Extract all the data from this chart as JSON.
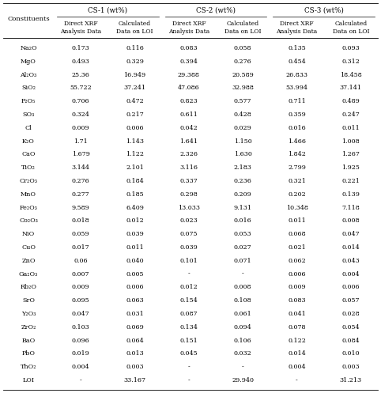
{
  "col_groups": [
    "CS-1 (wt%)",
    "CS-2 (wt%)",
    "CS-3 (wt%)"
  ],
  "sub_headers": [
    "Direct XRF\nAnalysis Data",
    "Calculated\nData on LOI",
    "Direct XRF\nAnalysis Data",
    "Calculated\nData on LOI",
    "Direct XRF\nAnalysis Data",
    "Calculated\nData on LOI"
  ],
  "constituents_col": "Constituents",
  "rows": [
    [
      "Na₂O",
      "0.173",
      "0.116",
      "0.083",
      "0.058",
      "0.135",
      "0.093"
    ],
    [
      "MgO",
      "0.493",
      "0.329",
      "0.394",
      "0.276",
      "0.454",
      "0.312"
    ],
    [
      "Al₂O₃",
      "25.36",
      "16.949",
      "29.388",
      "20.589",
      "26.833",
      "18.458"
    ],
    [
      "SiO₂",
      "55.722",
      "37.241",
      "47.086",
      "32.988",
      "53.994",
      "37.141"
    ],
    [
      "P₂O₅",
      "0.706",
      "0.472",
      "0.823",
      "0.577",
      "0.711",
      "0.489"
    ],
    [
      "SO₃",
      "0.324",
      "0.217",
      "0.611",
      "0.428",
      "0.359",
      "0.247"
    ],
    [
      "Cl",
      "0.009",
      "0.006",
      "0.042",
      "0.029",
      "0.016",
      "0.011"
    ],
    [
      "K₂O",
      "1.71",
      "1.143",
      "1.641",
      "1.150",
      "1.466",
      "1.008"
    ],
    [
      "CaO",
      "1.679",
      "1.122",
      "2.326",
      "1.630",
      "1.842",
      "1.267"
    ],
    [
      "TiO₂",
      "3.144",
      "2.101",
      "3.116",
      "2.183",
      "2.799",
      "1.925"
    ],
    [
      "Cr₂O₃",
      "0.276",
      "0.184",
      "0.337",
      "0.236",
      "0.321",
      "0.221"
    ],
    [
      "MnO",
      "0.277",
      "0.185",
      "0.298",
      "0.209",
      "0.202",
      "0.139"
    ],
    [
      "Fe₂O₃",
      "9.589",
      "6.409",
      "13.033",
      "9.131",
      "10.348",
      "7.118"
    ],
    [
      "Co₂O₃",
      "0.018",
      "0.012",
      "0.023",
      "0.016",
      "0.011",
      "0.008"
    ],
    [
      "NiO",
      "0.059",
      "0.039",
      "0.075",
      "0.053",
      "0.068",
      "0.047"
    ],
    [
      "CuO",
      "0.017",
      "0.011",
      "0.039",
      "0.027",
      "0.021",
      "0.014"
    ],
    [
      "ZnO",
      "0.06",
      "0.040",
      "0.101",
      "0.071",
      "0.062",
      "0.043"
    ],
    [
      "Ga₂O₃",
      "0.007",
      "0.005",
      "-",
      "-",
      "0.006",
      "0.004"
    ],
    [
      "Rb₂O",
      "0.009",
      "0.006",
      "0.012",
      "0.008",
      "0.009",
      "0.006"
    ],
    [
      "SrO",
      "0.095",
      "0.063",
      "0.154",
      "0.108",
      "0.083",
      "0.057"
    ],
    [
      "Y₂O₃",
      "0.047",
      "0.031",
      "0.087",
      "0.061",
      "0.041",
      "0.028"
    ],
    [
      "ZrO₂",
      "0.103",
      "0.069",
      "0.134",
      "0.094",
      "0.078",
      "0.054"
    ],
    [
      "BaO",
      "0.096",
      "0.064",
      "0.151",
      "0.106",
      "0.122",
      "0.084"
    ],
    [
      "PbO",
      "0.019",
      "0.013",
      "0.045",
      "0.032",
      "0.014",
      "0.010"
    ],
    [
      "ThO₂",
      "0.004",
      "0.003",
      "-",
      "-",
      "0.004",
      "0.003"
    ],
    [
      "LOI",
      "-",
      "33.167",
      "-",
      "29.940",
      "-",
      "31.213"
    ]
  ],
  "bg_color": "#ffffff",
  "text_color": "#000000",
  "figsize": [
    4.82,
    4.97
  ],
  "dpi": 100
}
